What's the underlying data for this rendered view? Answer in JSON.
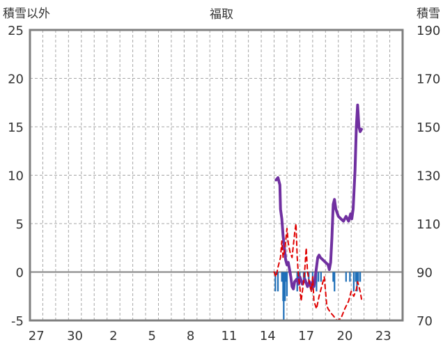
{
  "chart_data": {
    "type": "line",
    "title": "福取",
    "left_axis_label": "積雪以外",
    "right_axis_label": "積雪",
    "left_ylim": [
      -5,
      25
    ],
    "left_ticks": [
      25,
      20,
      15,
      10,
      5,
      0,
      -5
    ],
    "right_ylim": [
      70,
      190
    ],
    "right_ticks": [
      190,
      170,
      150,
      130,
      110,
      90,
      70
    ],
    "x_tick_labels": [
      "27",
      "30",
      "2",
      "5",
      "8",
      "11",
      "14",
      "17",
      "20",
      "23"
    ],
    "x_range": [
      0,
      29
    ],
    "x_tick_positions": [
      0.5,
      3.5,
      6.5,
      9.5,
      12.5,
      15.5,
      18.5,
      21.5,
      24.5,
      27.5
    ],
    "grid": true,
    "colors": {
      "snow_depth": "#7030a0",
      "temperature": "#e00000",
      "change": "#1f6fb8",
      "axis": "#7f7f7f"
    },
    "series": [
      {
        "key": "snow_depth",
        "axis": "right",
        "style": "line",
        "points": [
          [
            19.15,
            128
          ],
          [
            19.3,
            129
          ],
          [
            19.45,
            126
          ],
          [
            19.5,
            116
          ],
          [
            19.6,
            112
          ],
          [
            19.7,
            105
          ],
          [
            19.8,
            100
          ],
          [
            19.9,
            95
          ],
          [
            20.0,
            93
          ],
          [
            20.1,
            94
          ],
          [
            20.2,
            91
          ],
          [
            20.3,
            88
          ],
          [
            20.4,
            84
          ],
          [
            20.5,
            83
          ],
          [
            20.6,
            86
          ],
          [
            20.75,
            87
          ],
          [
            20.9,
            85
          ],
          [
            21.0,
            88
          ],
          [
            21.2,
            85
          ],
          [
            21.4,
            87
          ],
          [
            21.6,
            84
          ],
          [
            21.75,
            86
          ],
          [
            21.9,
            83
          ],
          [
            22.0,
            86
          ],
          [
            22.1,
            84
          ],
          [
            22.25,
            90
          ],
          [
            22.4,
            96
          ],
          [
            22.5,
            97
          ],
          [
            22.6,
            96
          ],
          [
            22.8,
            95
          ],
          [
            23.0,
            94
          ],
          [
            23.2,
            93
          ],
          [
            23.3,
            91
          ],
          [
            23.4,
            94
          ],
          [
            23.5,
            104
          ],
          [
            23.6,
            118
          ],
          [
            23.7,
            120
          ],
          [
            23.8,
            116
          ],
          [
            24.0,
            113
          ],
          [
            24.2,
            112
          ],
          [
            24.4,
            111
          ],
          [
            24.6,
            113
          ],
          [
            24.8,
            111
          ],
          [
            24.95,
            114
          ],
          [
            25.05,
            112
          ],
          [
            25.15,
            116
          ],
          [
            25.3,
            132
          ],
          [
            25.4,
            150
          ],
          [
            25.5,
            159
          ],
          [
            25.6,
            150
          ],
          [
            25.7,
            148
          ],
          [
            25.8,
            149
          ]
        ]
      },
      {
        "key": "temperature",
        "axis": "left",
        "style": "dashed",
        "points": [
          [
            19.0,
            0.0
          ],
          [
            19.15,
            -0.5
          ],
          [
            19.3,
            0.5
          ],
          [
            19.5,
            1.5
          ],
          [
            19.6,
            3.2
          ],
          [
            19.7,
            1.5
          ],
          [
            19.85,
            2.5
          ],
          [
            20.0,
            4.5
          ],
          [
            20.1,
            3.0
          ],
          [
            20.25,
            2.0
          ],
          [
            20.4,
            1.5
          ],
          [
            20.6,
            4.0
          ],
          [
            20.7,
            5.0
          ],
          [
            20.8,
            1.5
          ],
          [
            20.9,
            -0.5
          ],
          [
            21.0,
            -1.5
          ],
          [
            21.1,
            -3.0
          ],
          [
            21.3,
            -1.0
          ],
          [
            21.4,
            0.5
          ],
          [
            21.5,
            2.5
          ],
          [
            21.6,
            0.0
          ],
          [
            21.8,
            -1.5
          ],
          [
            21.9,
            -2.0
          ],
          [
            22.0,
            -0.5
          ],
          [
            22.1,
            -3.0
          ],
          [
            22.3,
            -3.8
          ],
          [
            22.5,
            -2.5
          ],
          [
            22.7,
            -1.5
          ],
          [
            22.9,
            -0.5
          ],
          [
            23.1,
            -3.5
          ],
          [
            23.2,
            -3.8
          ],
          [
            23.4,
            -4.2
          ],
          [
            23.6,
            -4.5
          ],
          [
            23.9,
            -5.0
          ],
          [
            24.2,
            -4.8
          ],
          [
            24.5,
            -3.8
          ],
          [
            24.8,
            -3.0
          ],
          [
            25.0,
            -2.0
          ],
          [
            25.2,
            -2.5
          ],
          [
            25.4,
            -1.8
          ],
          [
            25.5,
            -1.0
          ],
          [
            25.6,
            -1.5
          ],
          [
            25.7,
            -2.0
          ],
          [
            25.8,
            -2.8
          ]
        ]
      },
      {
        "key": "change",
        "axis": "left",
        "style": "bar",
        "points": [
          [
            19.1,
            -2.0
          ],
          [
            19.3,
            -2.0
          ],
          [
            19.6,
            -1.0
          ],
          [
            19.7,
            -3.0
          ],
          [
            19.75,
            -5.0
          ],
          [
            19.85,
            -3.0
          ],
          [
            19.9,
            -1.0
          ],
          [
            20.0,
            -2.5
          ],
          [
            20.3,
            -1.0
          ],
          [
            20.8,
            -2.0
          ],
          [
            20.9,
            -1.0
          ],
          [
            21.0,
            -1.0
          ],
          [
            21.3,
            -1.0
          ],
          [
            21.4,
            -1.0
          ],
          [
            21.7,
            -1.0
          ],
          [
            22.0,
            -1.0
          ],
          [
            22.2,
            -1.0
          ],
          [
            22.3,
            -2.0
          ],
          [
            22.45,
            -1.0
          ],
          [
            22.65,
            -1.0
          ],
          [
            23.6,
            -1.0
          ],
          [
            23.7,
            -2.0
          ],
          [
            24.6,
            -1.0
          ],
          [
            24.9,
            -1.0
          ],
          [
            25.2,
            -2.0
          ],
          [
            25.35,
            -1.0
          ],
          [
            25.45,
            -2.0
          ],
          [
            25.55,
            -1.0
          ],
          [
            25.7,
            -1.0
          ]
        ]
      }
    ]
  }
}
